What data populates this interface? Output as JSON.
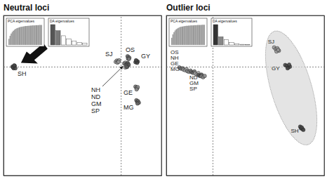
{
  "chart_data": [
    {
      "type": "scatter",
      "title": "Neutral loci",
      "xlim": [
        -10.4,
        3.6
      ],
      "ylim": [
        -6.8,
        3.2
      ],
      "xticks": [
        0
      ],
      "yticks": [
        0
      ],
      "grid": true,
      "tick_labels": false,
      "marker": "circle",
      "series": [
        {
          "color": "#444444",
          "x": [
            -9.6,
            -9.5,
            -9.4,
            -9.55,
            -9.35,
            -9.45
          ],
          "values": [
            0.0,
            -0.1,
            0.05,
            -0.05,
            -0.1,
            0.08
          ]
        },
        {
          "color": "#777777",
          "x": [
            0.6,
            0.68,
            0.76,
            0.64,
            0.72
          ],
          "values": [
            0.65,
            0.6,
            0.55,
            0.5,
            0.48
          ]
        },
        {
          "color": "#999999",
          "x": [
            -0.45,
            -0.35,
            -0.25,
            -0.15,
            -0.3,
            -0.2
          ],
          "values": [
            0.3,
            0.38,
            0.33,
            0.4,
            0.25,
            0.3
          ]
        },
        {
          "color": "#888888",
          "x": [
            0.3,
            0.4,
            0.45
          ],
          "values": [
            0.2,
            0.25,
            0.15
          ]
        },
        {
          "color": "#666666",
          "x": [
            0.5,
            0.55,
            0.6
          ],
          "values": [
            0.1,
            0.18,
            0.05
          ]
        },
        {
          "color": "#aaaaaa",
          "x": [
            0.4,
            0.5,
            0.58
          ],
          "values": [
            -0.05,
            0.0,
            0.08
          ]
        },
        {
          "color": "#555555",
          "x": [
            0.62,
            0.7,
            0.55
          ],
          "values": [
            0.22,
            0.12,
            -0.02
          ]
        },
        {
          "color": "#444444",
          "x": [
            1.3,
            1.4,
            1.5,
            1.45,
            1.35
          ],
          "values": [
            0.28,
            0.36,
            0.32,
            0.24,
            0.4
          ]
        },
        {
          "color": "#888888",
          "x": [
            1.3,
            1.38,
            1.45,
            1.5,
            1.4
          ],
          "values": [
            -1.25,
            -1.3,
            -1.35,
            -1.28,
            -1.42
          ]
        },
        {
          "color": "#666666",
          "x": [
            1.38,
            1.45,
            1.52,
            1.6,
            1.48
          ],
          "values": [
            -2.1,
            -2.2,
            -2.15,
            -2.25,
            -2.3
          ]
        }
      ],
      "annotations": [
        {
          "text": "SH",
          "x": -9.15,
          "y": -0.57
        },
        {
          "text": "OS",
          "x": 0.43,
          "y": 0.92
        },
        {
          "text": "SJ",
          "x": -1.38,
          "y": 0.66
        },
        {
          "text": "GY",
          "x": 1.8,
          "y": 0.52
        },
        {
          "text": "NH",
          "x": -2.62,
          "y": -1.58
        },
        {
          "text": "ND",
          "x": -2.62,
          "y": -2.02
        },
        {
          "text": "GM",
          "x": -2.62,
          "y": -2.46
        },
        {
          "text": "SP",
          "x": -2.62,
          "y": -2.9
        },
        {
          "text": "GE",
          "x": 0.24,
          "y": -1.76
        },
        {
          "text": "MG",
          "x": 0.24,
          "y": -2.68
        }
      ],
      "insets": [
        {
          "type": "bar",
          "title": "PCA eigenvalues",
          "ylim": [
            0,
            100
          ],
          "color": "#999999",
          "values": [
            30,
            45,
            56,
            64,
            70,
            75,
            79,
            82,
            84,
            86,
            88,
            89,
            90,
            91,
            92,
            93,
            93,
            94,
            94,
            95,
            95,
            96,
            96,
            96,
            97,
            97,
            97,
            98,
            98,
            98
          ]
        },
        {
          "type": "bar",
          "title": "DA eigenvalues",
          "ylim": [
            0,
            100
          ],
          "values": [
            100,
            70,
            45,
            30,
            20,
            12,
            8
          ],
          "colors": [
            "#555555",
            "#777777",
            "#ffffff",
            "#ffffff",
            "#ffffff",
            "#ffffff",
            "#ffffff"
          ]
        }
      ]
    },
    {
      "type": "scatter",
      "title": "Outlier loci",
      "xlim": [
        -2.93,
        7.07
      ],
      "ylim": [
        -6.8,
        3.2
      ],
      "xticks": [
        0
      ],
      "yticks": [
        0
      ],
      "grid": true,
      "tick_labels": false,
      "marker": "circle",
      "series": [
        {
          "color": "#777777",
          "x": [
            -2.1,
            -2.0,
            -1.9
          ],
          "values": [
            -0.05,
            -0.12,
            -0.1
          ]
        },
        {
          "color": "#999999",
          "x": [
            -1.85,
            -1.75,
            -1.65
          ],
          "values": [
            -0.18,
            -0.22,
            -0.15
          ]
        },
        {
          "color": "#888888",
          "x": [
            -1.6,
            -1.5,
            -1.4
          ],
          "values": [
            -0.28,
            -0.32,
            -0.25
          ]
        },
        {
          "color": "#666666",
          "x": [
            -1.35,
            -1.25,
            -1.15
          ],
          "values": [
            -0.33,
            -0.38,
            -0.3
          ]
        },
        {
          "color": "#aaaaaa",
          "x": [
            -1.1,
            -1.0,
            -0.9
          ],
          "values": [
            -0.42,
            -0.48,
            -0.4
          ]
        },
        {
          "color": "#555555",
          "x": [
            -0.9,
            -0.8,
            -0.7
          ],
          "values": [
            -0.52,
            -0.58,
            -0.5
          ]
        },
        {
          "color": "#888888",
          "x": [
            -0.7,
            -0.6,
            -0.5
          ],
          "values": [
            -0.6,
            -0.66,
            -0.58
          ]
        },
        {
          "color": "#999999",
          "x": [
            3.9,
            4.0,
            4.1,
            4.2,
            4.05,
            4.15
          ],
          "values": [
            1.2,
            1.1,
            1.15,
            1.0,
            0.95,
            1.05
          ]
        },
        {
          "color": "#444444",
          "x": [
            4.6,
            4.7,
            4.8,
            4.9,
            4.75,
            4.85
          ],
          "values": [
            0.1,
            0.05,
            -0.05,
            0.0,
            -0.1,
            0.12
          ]
        },
        {
          "color": "#444444",
          "x": [
            5.55,
            5.6,
            5.7,
            5.65,
            5.75
          ],
          "values": [
            -3.75,
            -3.85,
            -3.9,
            -3.8,
            -3.95
          ]
        }
      ],
      "annotations": [
        {
          "text": "OS",
          "x": -2.66,
          "y": 0.79
        },
        {
          "text": "NH",
          "x": -2.66,
          "y": 0.44
        },
        {
          "text": "GE",
          "x": -2.66,
          "y": 0.09
        },
        {
          "text": "MG",
          "x": -2.66,
          "y": -0.26
        },
        {
          "text": "ND",
          "x": -1.46,
          "y": -0.79
        },
        {
          "text": "GM",
          "x": -1.46,
          "y": -1.14
        },
        {
          "text": "SP",
          "x": -1.46,
          "y": -1.49
        },
        {
          "text": "SJ",
          "x": 3.5,
          "y": 1.45
        },
        {
          "text": "GY",
          "x": 3.74,
          "y": -0.22
        },
        {
          "text": "SH",
          "x": 4.96,
          "y": -4.12
        }
      ],
      "insets": [
        {
          "type": "bar",
          "title": "PCA eigenvalues",
          "ylim": [
            0,
            100
          ],
          "color": "#999999",
          "values": [
            35,
            52,
            63,
            71,
            77,
            81,
            84,
            87,
            89,
            90,
            91,
            92,
            93,
            94,
            94,
            95,
            95,
            96,
            96,
            96,
            97,
            97,
            97,
            98,
            98,
            98,
            98,
            99,
            99,
            99
          ]
        },
        {
          "type": "bar",
          "title": "DA eigenvalues",
          "ylim": [
            0,
            100
          ],
          "values": [
            100,
            40,
            25,
            12,
            6,
            3,
            2
          ],
          "colors": [
            "#333333",
            "#888888",
            "#ffffff",
            "#ffffff",
            "#ffffff",
            "#ffffff",
            "#ffffff"
          ]
        }
      ]
    }
  ]
}
